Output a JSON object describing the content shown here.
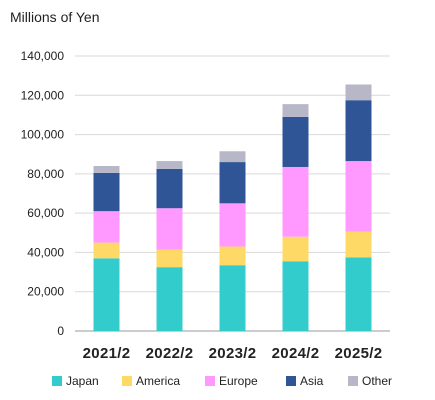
{
  "chart_data": {
    "type": "bar",
    "stacked": true,
    "unit_label": "Millions of Yen",
    "categories": [
      "2021/2",
      "2022/2",
      "2023/2",
      "2024/2",
      "2025/2"
    ],
    "series": [
      {
        "name": "Japan",
        "color": "#33CCCC",
        "values": [
          37000,
          32500,
          33500,
          35500,
          37500
        ]
      },
      {
        "name": "America",
        "color": "#FFD966",
        "values": [
          8000,
          9000,
          9500,
          12500,
          13000
        ]
      },
      {
        "name": "Europe",
        "color": "#FF99FF",
        "values": [
          16000,
          21000,
          22000,
          35500,
          36000
        ]
      },
      {
        "name": "Asia",
        "color": "#2F5597",
        "values": [
          19500,
          20000,
          21000,
          25500,
          31000
        ]
      },
      {
        "name": "Other",
        "color": "#B7B7C7",
        "values": [
          3500,
          4000,
          5500,
          6500,
          8000
        ]
      }
    ],
    "yticks": [
      "0",
      "20,000",
      "40,000",
      "60,000",
      "80,000",
      "100,000",
      "120,000",
      "140,000"
    ],
    "ylim": [
      0,
      140000
    ],
    "grid": "horizontal",
    "legend_position": "bottom"
  }
}
